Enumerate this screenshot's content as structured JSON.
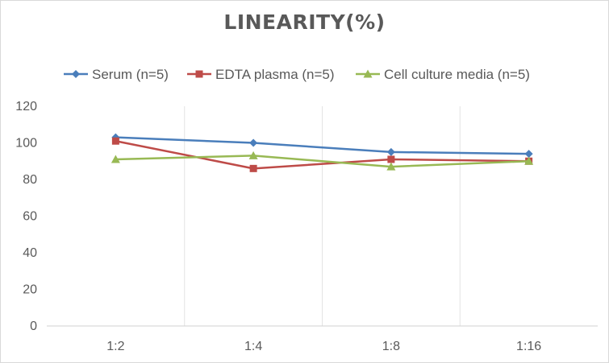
{
  "chart_data": {
    "type": "line",
    "title": "LINEARITY(%)",
    "categories": [
      "1:2",
      "1:4",
      "1:8",
      "1:16"
    ],
    "ylim": [
      0,
      120
    ],
    "yticks": [
      0,
      20,
      40,
      60,
      80,
      100,
      120
    ],
    "grid": "vertical",
    "legend_position": "top",
    "series": [
      {
        "name": "Serum (n=5)",
        "values": [
          103,
          100,
          95,
          94
        ],
        "color": "#4a7ebb",
        "marker": "diamond"
      },
      {
        "name": "EDTA plasma (n=5)",
        "values": [
          101,
          86,
          91,
          90
        ],
        "color": "#be4b48",
        "marker": "square"
      },
      {
        "name": "Cell culture media (n=5)",
        "values": [
          91,
          93,
          87,
          90
        ],
        "color": "#98b954",
        "marker": "triangle"
      }
    ]
  }
}
